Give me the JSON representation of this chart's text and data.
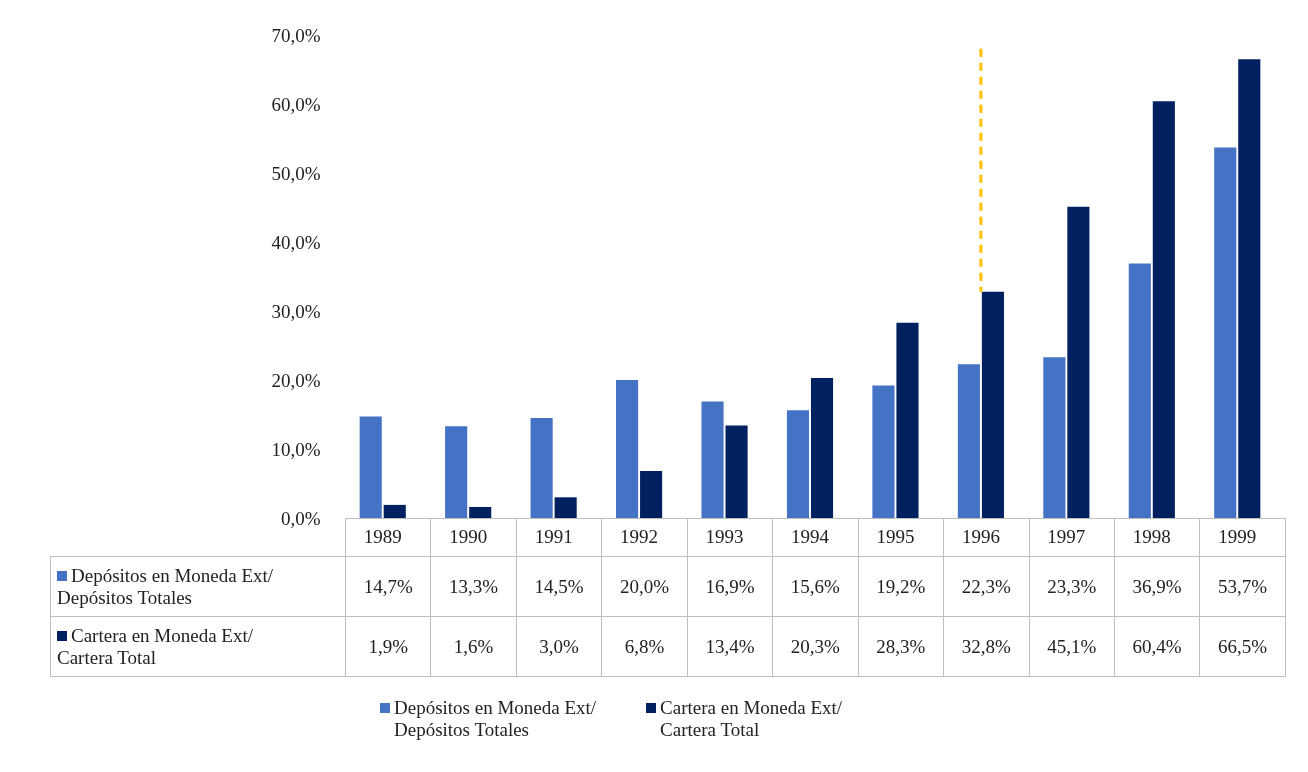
{
  "chart_data": {
    "type": "bar",
    "categories": [
      "1989",
      "1990",
      "1991",
      "1992",
      "1993",
      "1994",
      "1995",
      "1996",
      "1997",
      "1998",
      "1999"
    ],
    "series": [
      {
        "name": "Depósitos en Moneda Ext/ Depósitos Totales",
        "color": "#4472c4",
        "values": [
          14.7,
          13.3,
          14.5,
          20.0,
          16.9,
          15.6,
          19.2,
          22.3,
          23.3,
          36.9,
          53.7
        ],
        "value_labels": [
          "14,7%",
          "13,3%",
          "14,5%",
          "20,0%",
          "16,9%",
          "15,6%",
          "19,2%",
          "22,3%",
          "23,3%",
          "36,9%",
          "53,7%"
        ]
      },
      {
        "name": "Cartera en Moneda Ext/ Cartera Total",
        "color": "#002060",
        "values": [
          1.9,
          1.6,
          3.0,
          6.8,
          13.4,
          20.3,
          28.3,
          32.8,
          45.1,
          60.4,
          66.5
        ],
        "value_labels": [
          "1,9%",
          "1,6%",
          "3,0%",
          "6,8%",
          "13,4%",
          "20,3%",
          "28,3%",
          "32,8%",
          "45,1%",
          "60,4%",
          "66,5%"
        ]
      }
    ],
    "ylim": [
      0,
      70
    ],
    "yticks": [
      {
        "value": 0,
        "label": "0,0%"
      },
      {
        "value": 10,
        "label": "10,0%"
      },
      {
        "value": 20,
        "label": "20,0%"
      },
      {
        "value": 30,
        "label": "30,0%"
      },
      {
        "value": 40,
        "label": "40,0%"
      },
      {
        "value": 50,
        "label": "50,0%"
      },
      {
        "value": 60,
        "label": "60,0%"
      },
      {
        "value": 70,
        "label": "70,0%"
      }
    ],
    "ref_lines": [
      {
        "axis": "x",
        "value": "1996",
        "color": "#ffc000",
        "line_style": "dashed"
      }
    ],
    "grid": false,
    "legend": "bottom"
  }
}
